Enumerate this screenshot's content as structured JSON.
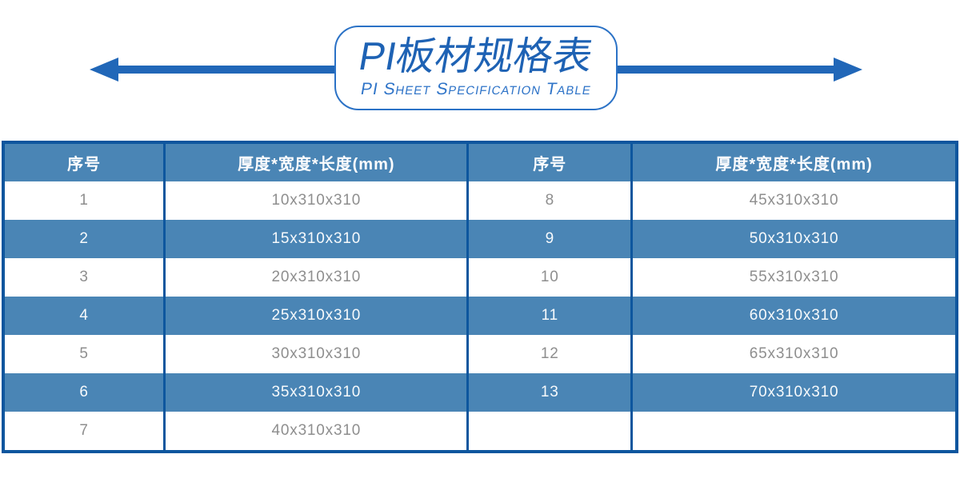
{
  "title": {
    "main": "PI板材规格表",
    "sub": "PI Sheet Specification Table"
  },
  "colors": {
    "accent_blue": "#2167B8",
    "steel_blue_fill": "#4A85B5",
    "dark_border_blue": "#0D569E",
    "title_blue": "#1E62B4",
    "row_text_gray": "#8E8E8E"
  },
  "table": {
    "headers": [
      "序号",
      "厚度*宽度*长度(mm)",
      "序号",
      "厚度*宽度*长度(mm)"
    ],
    "rows": [
      [
        "1",
        "10x310x310",
        "8",
        "45x310x310"
      ],
      [
        "2",
        "15x310x310",
        "9",
        "50x310x310"
      ],
      [
        "3",
        "20x310x310",
        "10",
        "55x310x310"
      ],
      [
        "4",
        "25x310x310",
        "11",
        "60x310x310"
      ],
      [
        "5",
        "30x310x310",
        "12",
        "65x310x310"
      ],
      [
        "6",
        "35x310x310",
        "13",
        "70x310x310"
      ],
      [
        "7",
        "40x310x310",
        "",
        ""
      ]
    ]
  }
}
